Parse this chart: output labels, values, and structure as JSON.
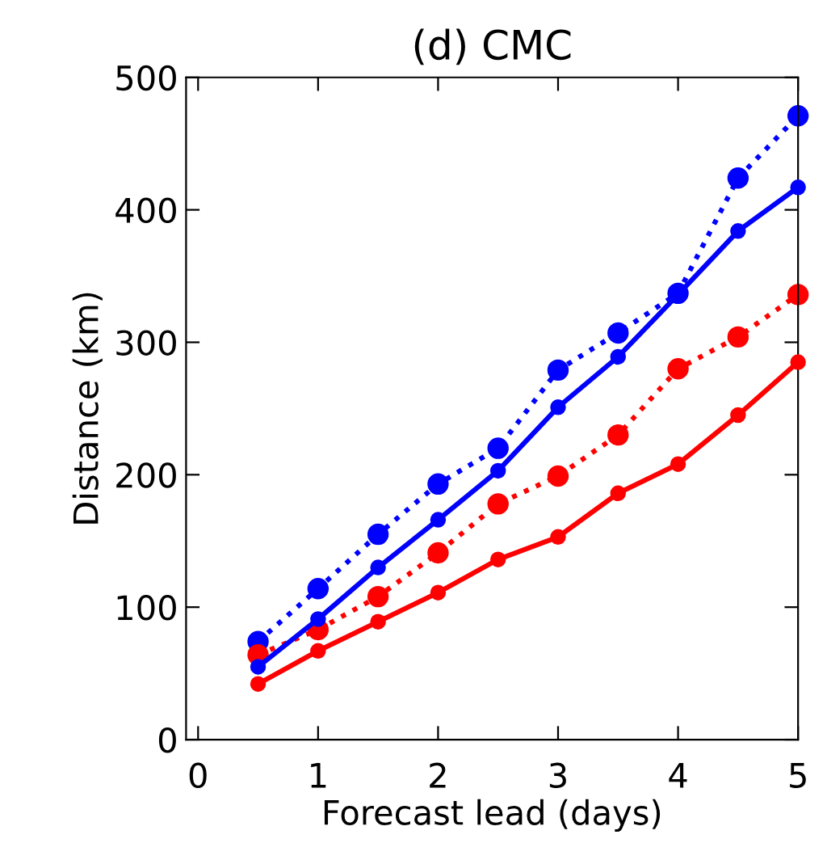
{
  "chart_data": {
    "type": "line",
    "title": "(d) CMC",
    "xlabel": "Forecast lead (days)",
    "ylabel": "Distance (km)",
    "x": [
      0.5,
      1,
      1.5,
      2,
      2.5,
      3,
      3.5,
      4,
      4.5,
      5
    ],
    "series": [
      {
        "color": "#0000ff",
        "line_style": "dotted",
        "values": [
          74,
          114,
          155,
          193,
          220,
          279,
          307,
          337,
          424,
          471
        ]
      },
      {
        "color": "#0000ff",
        "line_style": "solid",
        "values": [
          55,
          91,
          130,
          166,
          203,
          251,
          289,
          336,
          384,
          417
        ]
      },
      {
        "color": "#ff0000",
        "line_style": "dotted",
        "values": [
          64,
          83,
          108,
          141,
          178,
          199,
          230,
          280,
          304,
          336
        ]
      },
      {
        "color": "#ff0000",
        "line_style": "solid",
        "values": [
          42,
          67,
          89,
          111,
          136,
          153,
          186,
          208,
          245,
          285
        ]
      }
    ],
    "marker": "circle",
    "xlim": [
      -0.1,
      5
    ],
    "xticks": [
      0,
      1,
      2,
      3,
      4,
      5
    ],
    "ylim": [
      0,
      500
    ],
    "yticks": [
      0,
      100,
      200,
      300,
      400,
      500
    ],
    "grid": false,
    "legend": false
  }
}
